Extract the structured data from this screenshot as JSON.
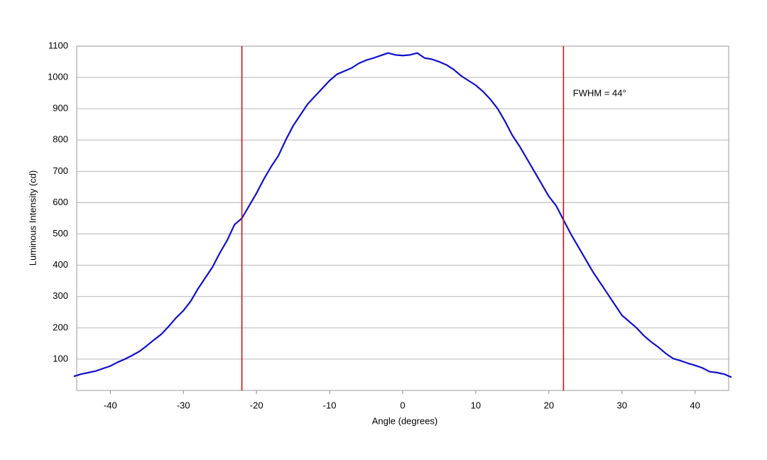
{
  "chart_data": {
    "type": "line",
    "x_label": "Angle (degrees)",
    "y_label": "Luminous Intensity (cd)",
    "x": [
      -45,
      -44,
      -43,
      -42,
      -41,
      -40,
      -39,
      -38,
      -37,
      -36,
      -35,
      -34,
      -33,
      -32,
      -31,
      -30,
      -29,
      -28,
      -27,
      -26,
      -25,
      -24,
      -23,
      -22,
      -21,
      -20,
      -19,
      -18,
      -17,
      -16,
      -15,
      -14,
      -13,
      -12,
      -11,
      -10,
      -9,
      -8,
      -7,
      -6,
      -5,
      -4,
      -3,
      -2,
      -1,
      0,
      1,
      2,
      3,
      4,
      5,
      6,
      7,
      8,
      9,
      10,
      11,
      12,
      13,
      14,
      15,
      16,
      17,
      18,
      19,
      20,
      21,
      22,
      23,
      24,
      25,
      26,
      27,
      28,
      29,
      30,
      31,
      32,
      33,
      34,
      35,
      36,
      37,
      38,
      39,
      40,
      41,
      42,
      43,
      44,
      45
    ],
    "series": [
      {
        "color": "#1010cc",
        "values": [
          45,
          52,
          57,
          62,
          70,
          78,
          90,
          100,
          112,
          125,
          143,
          162,
          180,
          205,
          232,
          255,
          285,
          325,
          360,
          395,
          440,
          480,
          530,
          550,
          590,
          630,
          675,
          715,
          750,
          800,
          845,
          880,
          915,
          940,
          965,
          990,
          1010,
          1020,
          1030,
          1045,
          1055,
          1062,
          1070,
          1078,
          1072,
          1070,
          1072,
          1078,
          1062,
          1058,
          1050,
          1040,
          1025,
          1005,
          990,
          975,
          955,
          930,
          900,
          860,
          815,
          780,
          740,
          700,
          660,
          620,
          590,
          545,
          500,
          460,
          420,
          380,
          345,
          310,
          275,
          240,
          220,
          200,
          175,
          155,
          138,
          118,
          102,
          95,
          87,
          80,
          72,
          60,
          57,
          52,
          42
        ]
      }
    ],
    "vlines": {
      "color": "#cc1111",
      "values": [
        -22,
        22
      ]
    },
    "annotations": [
      {
        "text": "FWHM = 44°",
        "x": 23.3,
        "y": 948
      }
    ],
    "xlim": [
      -44.6,
      44.6
    ],
    "ylim": [
      0,
      1100
    ],
    "xticks": [
      -40,
      -30,
      -20,
      -10,
      0,
      10,
      20,
      30,
      40
    ],
    "yticks": [
      100,
      200,
      300,
      400,
      500,
      600,
      700,
      800,
      900,
      1000,
      1100
    ],
    "grid": true
  }
}
